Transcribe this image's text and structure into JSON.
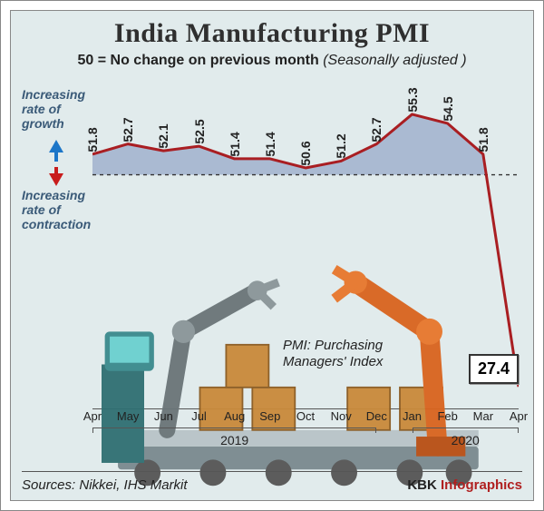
{
  "title": "India Manufacturing PMI",
  "subtitle_bold": "50 = No change on previous month",
  "subtitle_italic": "(Seasonally adjusted )",
  "growth_label": "Increasing rate of growth",
  "contraction_label": "Increasing rate of contraction",
  "pmi_note": "PMI: Purchasing Managers' Index",
  "sources_label": "Sources: Nikkei,  IHS Markit",
  "brand_a": "KBK",
  "brand_b": "Infographics",
  "chart": {
    "type": "area-line",
    "baseline": 50,
    "months": [
      "Apr",
      "May",
      "Jun",
      "Jul",
      "Aug",
      "Sep",
      "Oct",
      "Nov",
      "Dec",
      "Jan",
      "Feb",
      "Mar",
      "Apr"
    ],
    "values": [
      51.8,
      52.7,
      52.1,
      52.5,
      51.4,
      51.4,
      50.6,
      51.2,
      52.7,
      55.3,
      54.5,
      51.8,
      27.4
    ],
    "visible_y_min": 25,
    "visible_y_max": 58,
    "baseline_fraction_from_top": 0.28,
    "line_color": "#a91e22",
    "line_width": 3,
    "area_above_color": "#97a9c9",
    "area_above_opacity": 0.75,
    "baseline_dash": "4,4",
    "baseline_color": "#333333",
    "label_fontsize": 14,
    "label_rotation_deg": -90,
    "last_value_box": true,
    "years": [
      {
        "label": "2019",
        "from_idx": 0,
        "to_idx": 8
      },
      {
        "label": "2020",
        "from_idx": 9,
        "to_idx": 12
      }
    ],
    "background_color": "#e1ebec",
    "arrow_up_color": "#1c76c8",
    "arrow_down_color": "#c81c1c"
  }
}
